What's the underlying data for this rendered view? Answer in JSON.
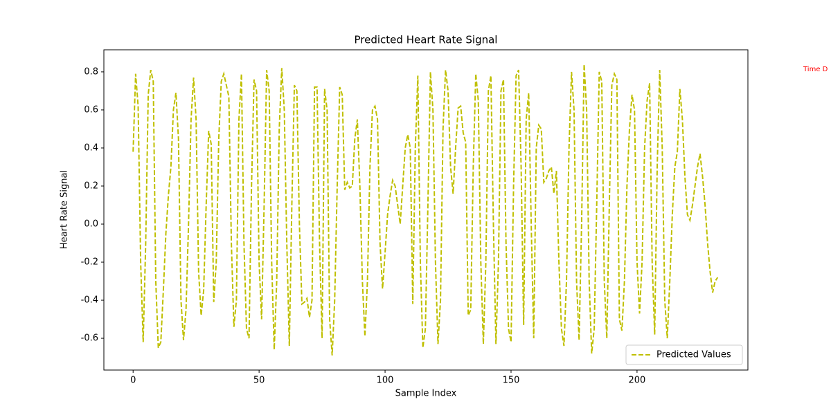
{
  "chart_data": {
    "type": "line",
    "title": "Predicted Heart Rate Signal",
    "xlabel": "Sample Index",
    "ylabel": "Heart Rate Signal",
    "annotation": "Time D",
    "series": [
      {
        "name": "Predicted Values",
        "color": "#bfbf00",
        "linestyle": "dashed",
        "values": [
          0.38,
          0.79,
          0.62,
          -0.2,
          -0.62,
          -0.1,
          0.68,
          0.81,
          0.75,
          -0.3,
          -0.65,
          -0.62,
          -0.35,
          -0.05,
          0.15,
          0.3,
          0.6,
          0.69,
          0.45,
          -0.4,
          -0.61,
          -0.45,
          0.0,
          0.55,
          0.77,
          0.55,
          -0.25,
          -0.48,
          -0.35,
          0.1,
          0.49,
          0.42,
          -0.41,
          -0.2,
          0.45,
          0.75,
          0.79,
          0.73,
          0.67,
          -0.1,
          -0.54,
          -0.4,
          0.55,
          0.79,
          -0.1,
          -0.55,
          -0.6,
          0.2,
          0.76,
          0.7,
          -0.2,
          -0.5,
          0.1,
          0.81,
          0.7,
          -0.2,
          -0.66,
          -0.3,
          0.5,
          0.82,
          0.6,
          -0.1,
          -0.64,
          0.1,
          0.73,
          0.7,
          0.0,
          -0.42,
          -0.41,
          -0.39,
          -0.49,
          -0.4,
          0.72,
          0.72,
          -0.1,
          -0.6,
          0.71,
          0.6,
          -0.5,
          -0.69,
          -0.4,
          0.2,
          0.72,
          0.68,
          0.18,
          0.22,
          0.19,
          0.2,
          0.45,
          0.55,
          0.2,
          -0.3,
          -0.59,
          -0.3,
          0.3,
          0.6,
          0.62,
          0.55,
          -0.1,
          -0.34,
          -0.15,
          0.05,
          0.15,
          0.23,
          0.2,
          0.1,
          0.0,
          0.2,
          0.4,
          0.47,
          0.4,
          -0.42,
          0.4,
          0.78,
          -0.2,
          -0.65,
          -0.55,
          0.1,
          0.8,
          0.6,
          -0.2,
          -0.63,
          -0.4,
          0.5,
          0.81,
          0.7,
          0.3,
          0.16,
          0.4,
          0.61,
          0.62,
          0.48,
          0.43,
          -0.48,
          -0.45,
          0.3,
          0.79,
          0.65,
          -0.2,
          -0.63,
          -0.2,
          0.7,
          0.78,
          0.0,
          -0.63,
          -0.2,
          0.7,
          0.76,
          -0.1,
          -0.55,
          -0.62,
          0.2,
          0.78,
          0.81,
          0.3,
          -0.53,
          0.55,
          0.69,
          0.0,
          -0.6,
          0.4,
          0.52,
          0.5,
          0.22,
          0.24,
          0.28,
          0.3,
          0.16,
          0.28,
          -0.2,
          -0.55,
          -0.64,
          -0.3,
          0.4,
          0.8,
          0.6,
          -0.3,
          -0.61,
          0.0,
          0.84,
          0.6,
          -0.3,
          -0.68,
          -0.55,
          0.1,
          0.8,
          0.75,
          -0.3,
          -0.6,
          0.1,
          0.73,
          0.79,
          0.76,
          -0.5,
          -0.56,
          -0.3,
          0.2,
          0.5,
          0.68,
          0.6,
          -0.2,
          -0.47,
          -0.2,
          0.4,
          0.65,
          0.74,
          -0.2,
          -0.58,
          0.3,
          0.81,
          0.4,
          -0.4,
          -0.6,
          -0.3,
          0.05,
          0.3,
          0.38,
          0.71,
          0.55,
          0.25,
          0.05,
          0.02,
          0.1,
          0.2,
          0.3,
          0.37,
          0.25,
          0.1,
          -0.1,
          -0.25,
          -0.36,
          -0.3,
          -0.28
        ]
      }
    ],
    "xlim": [
      -11.6,
      244
    ],
    "xticks": [
      0,
      50,
      100,
      150,
      200
    ],
    "ylim": [
      -0.767,
      0.916
    ],
    "yticks": [
      -0.6,
      -0.4,
      -0.2,
      {
        "value": 0,
        "label": "0.0"
      },
      0.2,
      0.4,
      0.6,
      0.8
    ],
    "legend": "lower right",
    "grid": false
  }
}
